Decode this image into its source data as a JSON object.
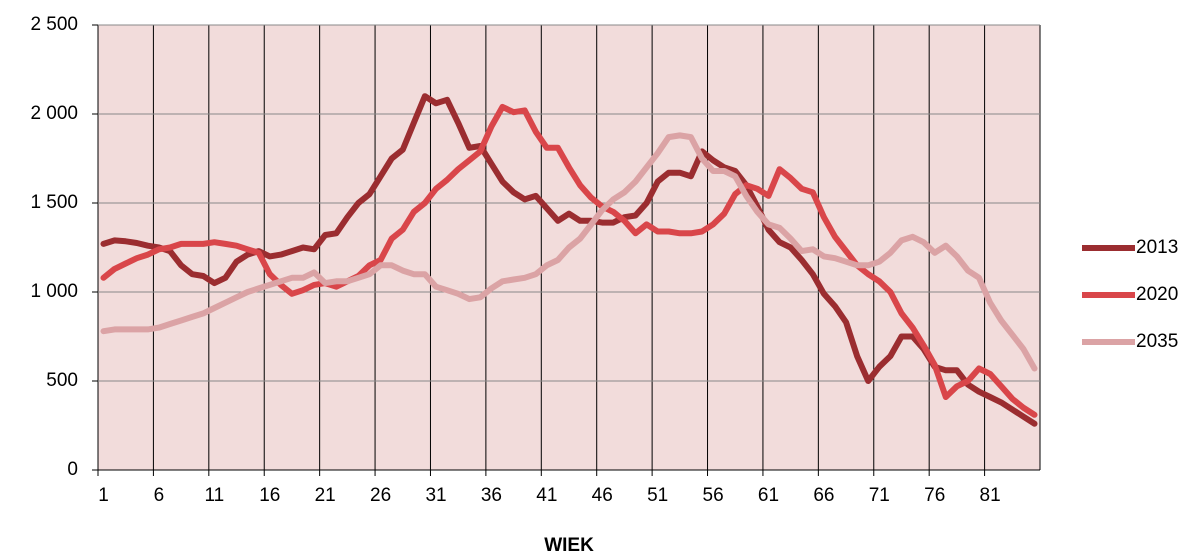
{
  "chart_data": {
    "type": "line",
    "x_label": "WIEK",
    "categories": [
      1,
      null,
      null,
      null,
      null,
      6,
      null,
      null,
      null,
      null,
      11,
      null,
      null,
      null,
      null,
      16,
      null,
      null,
      null,
      null,
      21,
      null,
      null,
      null,
      null,
      26,
      null,
      null,
      null,
      null,
      31,
      null,
      null,
      null,
      null,
      36,
      null,
      null,
      null,
      null,
      41,
      null,
      null,
      null,
      null,
      46,
      null,
      null,
      null,
      null,
      51,
      null,
      null,
      null,
      null,
      56,
      null,
      null,
      null,
      null,
      61,
      null,
      null,
      null,
      null,
      66,
      null,
      null,
      null,
      null,
      71,
      null,
      null,
      null,
      null,
      76,
      null,
      null,
      null,
      null,
      81,
      null,
      null,
      null,
      null
    ],
    "series": [
      {
        "name": "2013",
        "color": "#9b2d30",
        "values": [
          1270,
          1290,
          1285,
          1275,
          1260,
          1250,
          1230,
          1150,
          1100,
          1090,
          1050,
          1080,
          1170,
          1210,
          1230,
          1200,
          1210,
          1230,
          1250,
          1240,
          1320,
          1330,
          1420,
          1500,
          1550,
          1650,
          1750,
          1800,
          1950,
          2100,
          2060,
          2080,
          1950,
          1810,
          1820,
          1720,
          1620,
          1560,
          1520,
          1540,
          1470,
          1400,
          1440,
          1400,
          1400,
          1390,
          1390,
          1420,
          1430,
          1500,
          1620,
          1670,
          1670,
          1650,
          1790,
          1740,
          1700,
          1680,
          1600,
          1480,
          1350,
          1280,
          1250,
          1180,
          1100,
          990,
          920,
          830,
          640,
          500,
          580,
          640,
          750,
          750,
          680,
          580,
          560,
          560,
          480,
          440,
          410,
          380,
          340,
          300,
          260
        ]
      },
      {
        "name": "2020",
        "color": "#d9464a",
        "values": [
          1080,
          1130,
          1160,
          1190,
          1210,
          1240,
          1250,
          1270,
          1270,
          1270,
          1280,
          1270,
          1260,
          1240,
          1220,
          1100,
          1040,
          990,
          1010,
          1040,
          1050,
          1030,
          1060,
          1090,
          1150,
          1180,
          1300,
          1350,
          1450,
          1500,
          1580,
          1630,
          1690,
          1740,
          1790,
          1930,
          2040,
          2010,
          2020,
          1900,
          1810,
          1810,
          1700,
          1600,
          1530,
          1480,
          1450,
          1400,
          1330,
          1380,
          1340,
          1340,
          1330,
          1330,
          1340,
          1380,
          1440,
          1550,
          1600,
          1580,
          1540,
          1690,
          1640,
          1580,
          1560,
          1420,
          1310,
          1230,
          1150,
          1100,
          1060,
          1000,
          880,
          800,
          700,
          590,
          410,
          470,
          500,
          570,
          540,
          470,
          400,
          350,
          310
        ]
      },
      {
        "name": "2035",
        "color": "#dba3a5",
        "values": [
          780,
          790,
          790,
          790,
          790,
          800,
          820,
          840,
          860,
          880,
          910,
          940,
          970,
          1000,
          1020,
          1040,
          1060,
          1080,
          1080,
          1110,
          1050,
          1060,
          1060,
          1080,
          1100,
          1150,
          1150,
          1120,
          1100,
          1100,
          1030,
          1010,
          990,
          960,
          970,
          1020,
          1060,
          1070,
          1080,
          1100,
          1150,
          1180,
          1250,
          1300,
          1380,
          1460,
          1520,
          1560,
          1620,
          1700,
          1780,
          1870,
          1880,
          1870,
          1750,
          1680,
          1680,
          1650,
          1540,
          1450,
          1380,
          1360,
          1300,
          1230,
          1240,
          1200,
          1190,
          1170,
          1150,
          1150,
          1170,
          1220,
          1290,
          1310,
          1280,
          1220,
          1260,
          1200,
          1120,
          1080,
          940,
          840,
          760,
          680,
          570
        ]
      }
    ],
    "ylim": [
      0,
      2500
    ],
    "yticks": [
      0,
      500,
      {
        "value": 1000,
        "label": "1 000"
      },
      {
        "value": 1500,
        "label": "1 500"
      },
      {
        "value": 2000,
        "label": "2 000"
      },
      {
        "value": 2500,
        "label": "2 500"
      }
    ],
    "grid": true,
    "legend": "right"
  }
}
